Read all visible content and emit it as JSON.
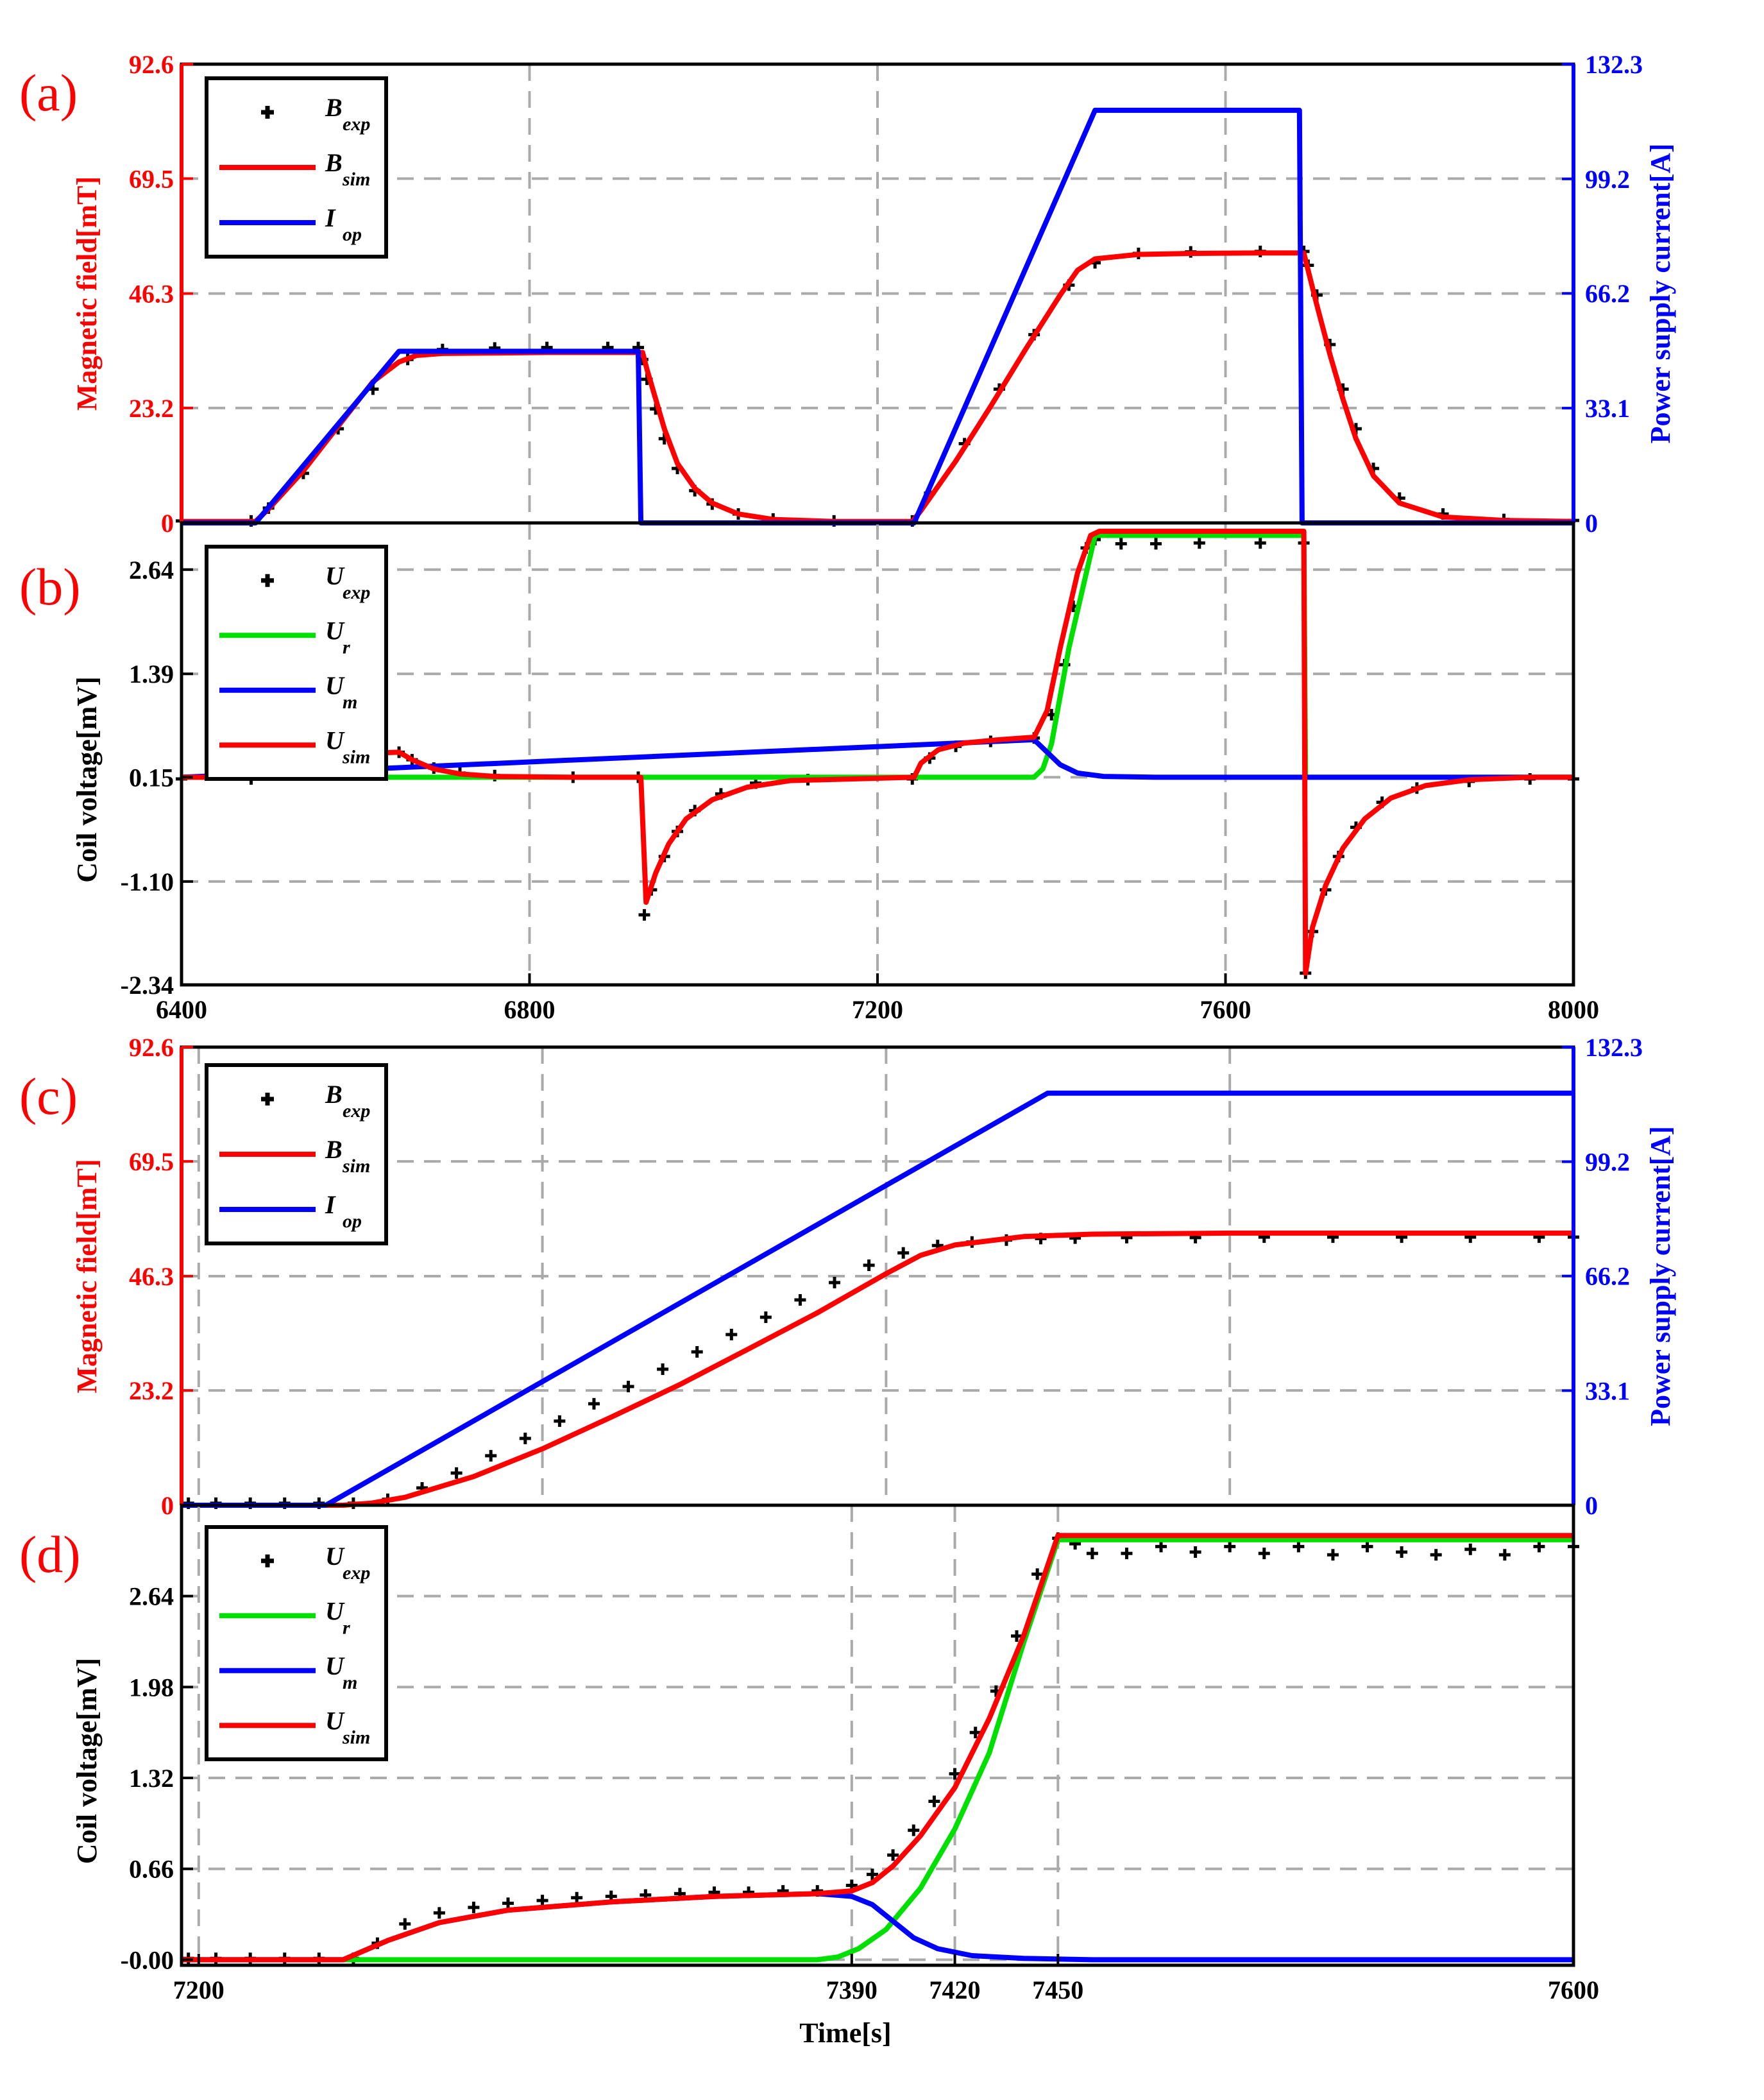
{
  "chart_data": [
    {
      "panel": "(a)",
      "type": "line",
      "xlim": [
        6400,
        8000
      ],
      "xticks": [
        "6400",
        "6800",
        "7200",
        "7600",
        "8000"
      ],
      "ylim_left": [
        0,
        92.6
      ],
      "yticks_left": [
        "0",
        "23.2",
        "46.3",
        "69.5",
        "92.6"
      ],
      "ylabel_left": "Magnetic field[mT]",
      "ylim_right": [
        0,
        132.3
      ],
      "yticks_right": [
        "0",
        "33.1",
        "66.2",
        "99.2",
        "132.3"
      ],
      "ylabel_right": "Power supply current[A]",
      "grid": true,
      "legend_position": "top-left",
      "legend": [
        {
          "label": "B",
          "sub": "exp",
          "color": "#000000",
          "marker": "plus"
        },
        {
          "label": "B",
          "sub": "sim",
          "color": "#ff0000"
        },
        {
          "label": "I",
          "sub": "op",
          "color": "#0000ff"
        }
      ],
      "series": [
        {
          "name": "B_exp",
          "axis": "left",
          "color": "#000000",
          "marker": "plus",
          "x": [
            6400,
            6480,
            6500,
            6540,
            6580,
            6620,
            6660,
            6700,
            6760,
            6820,
            6890,
            6925,
            6930,
            6935,
            6945,
            6955,
            6970,
            6990,
            7010,
            7040,
            7080,
            7150,
            7240,
            7260,
            7300,
            7340,
            7380,
            7420,
            7450,
            7500,
            7560,
            7640,
            7690,
            7695,
            7705,
            7720,
            7735,
            7750,
            7770,
            7800,
            7850,
            7920,
            8000
          ],
          "y": [
            0.4,
            0.4,
            3,
            10,
            19,
            27,
            33,
            35,
            35.3,
            35.4,
            35.4,
            35.4,
            33,
            29,
            23,
            17,
            11,
            6.5,
            3.8,
            1.8,
            0.8,
            0.4,
            0.4,
            6,
            16,
            27,
            38,
            48,
            52.5,
            54.4,
            54.7,
            54.8,
            54.8,
            52,
            46,
            36,
            27,
            19,
            11,
            5,
            1.8,
            0.7,
            0.5
          ]
        },
        {
          "name": "B_sim",
          "axis": "left",
          "color": "#ff0000",
          "x": [
            6400,
            6485,
            6500,
            6540,
            6580,
            6620,
            6650,
            6670,
            6700,
            6760,
            6820,
            6890,
            6930,
            6935,
            6945,
            6955,
            6970,
            6990,
            7010,
            7040,
            7080,
            7150,
            7240,
            7250,
            7290,
            7330,
            7370,
            7410,
            7430,
            7450,
            7500,
            7560,
            7640,
            7690,
            7695,
            7705,
            7720,
            7735,
            7750,
            7770,
            7800,
            7850,
            7920,
            8000
          ],
          "y": [
            0.3,
            0.3,
            2.8,
            10.5,
            19.5,
            28.5,
            32.5,
            33.8,
            34.2,
            34.3,
            34.4,
            34.4,
            34.4,
            31,
            25,
            19,
            12,
            7,
            4,
            1.8,
            0.7,
            0.3,
            0.3,
            2.5,
            12.5,
            23.5,
            35,
            46,
            51,
            53.3,
            54.2,
            54.4,
            54.5,
            54.5,
            51,
            44,
            34,
            25,
            17,
            9.5,
            4,
            1.2,
            0.5,
            0.3
          ]
        },
        {
          "name": "I_op",
          "axis": "right",
          "color": "#0000ff",
          "x": [
            6400,
            6485,
            6650,
            6925,
            6928,
            7242,
            7450,
            7685,
            7688,
            8000
          ],
          "y": [
            0,
            0,
            49.5,
            49.5,
            0,
            0,
            119,
            119,
            0,
            0
          ]
        }
      ]
    },
    {
      "panel": "(b)",
      "type": "line",
      "xlim": [
        6400,
        8000
      ],
      "xticks": [
        "6400",
        "6800",
        "7200",
        "7600",
        "8000"
      ],
      "ylim_left": [
        -2.34,
        3.2
      ],
      "yticks_left": [
        "-2.34",
        "-1.10",
        "0.15",
        "1.39",
        "2.64"
      ],
      "ylabel_left": "Coil voltage[mV]",
      "grid": true,
      "legend_position": "top-left",
      "legend": [
        {
          "label": "U",
          "sub": "exp",
          "color": "#000000",
          "marker": "plus"
        },
        {
          "label": "U",
          "sub": "r",
          "color": "#00e000"
        },
        {
          "label": "U",
          "sub": "m",
          "color": "#0000ff"
        },
        {
          "label": "U",
          "sub": "sim",
          "color": "#ff0000"
        }
      ],
      "series": [
        {
          "name": "U_exp",
          "axis": "left",
          "color": "#000000",
          "marker": "plus",
          "x": [
            6400,
            6480,
            6495,
            6520,
            6560,
            6600,
            6650,
            6665,
            6690,
            6720,
            6760,
            6850,
            6925,
            6932,
            6940,
            6955,
            6970,
            6990,
            7020,
            7060,
            7120,
            7240,
            7260,
            7290,
            7330,
            7380,
            7400,
            7415,
            7425,
            7440,
            7450,
            7480,
            7520,
            7570,
            7640,
            7690,
            7692,
            7700,
            7715,
            7730,
            7750,
            7780,
            7820,
            7880,
            7950,
            8000
          ],
          "y": [
            0.13,
            0.13,
            0.28,
            0.38,
            0.42,
            0.44,
            0.45,
            0.36,
            0.26,
            0.2,
            0.17,
            0.15,
            0.15,
            -1.5,
            -1.2,
            -0.8,
            -0.5,
            -0.25,
            -0.05,
            0.08,
            0.12,
            0.13,
            0.38,
            0.52,
            0.58,
            0.62,
            0.9,
            1.5,
            2.2,
            2.9,
            3.0,
            2.95,
            2.95,
            2.96,
            2.96,
            2.96,
            -2.2,
            -1.7,
            -1.2,
            -0.8,
            -0.45,
            -0.15,
            0.02,
            0.1,
            0.13,
            0.13
          ]
        },
        {
          "name": "U_r",
          "axis": "left",
          "color": "#00e000",
          "x": [
            6400,
            7380,
            7390,
            7400,
            7420,
            7450,
            7690,
            7692,
            8000
          ],
          "y": [
            0.15,
            0.15,
            0.25,
            0.55,
            1.7,
            3.05,
            3.05,
            0.15,
            0.15
          ]
        },
        {
          "name": "U_m",
          "axis": "left",
          "color": "#0000ff",
          "x": [
            6400,
            7380,
            7395,
            7410,
            7430,
            7460,
            7520,
            7600,
            8000
          ],
          "y": [
            0.15,
            0.6,
            0.45,
            0.3,
            0.2,
            0.16,
            0.15,
            0.15,
            0.15
          ]
        },
        {
          "name": "U_sim",
          "axis": "left",
          "color": "#ff0000",
          "x": [
            6400,
            6485,
            6500,
            6530,
            6570,
            6620,
            6650,
            6665,
            6690,
            6720,
            6760,
            6850,
            6928,
            6934,
            6945,
            6960,
            6980,
            7010,
            7050,
            7100,
            7242,
            7250,
            7270,
            7300,
            7340,
            7380,
            7395,
            7410,
            7430,
            7445,
            7455,
            7690,
            7692,
            7700,
            7715,
            7735,
            7760,
            7790,
            7830,
            7880,
            7950,
            8000
          ],
          "y": [
            0.15,
            0.15,
            0.3,
            0.38,
            0.42,
            0.44,
            0.45,
            0.36,
            0.25,
            0.19,
            0.16,
            0.15,
            0.15,
            -1.35,
            -1.0,
            -0.65,
            -0.35,
            -0.12,
            0.03,
            0.11,
            0.15,
            0.32,
            0.48,
            0.56,
            0.6,
            0.63,
            0.95,
            1.7,
            2.6,
            3.05,
            3.1,
            3.1,
            -2.2,
            -1.65,
            -1.15,
            -0.7,
            -0.35,
            -0.1,
            0.05,
            0.12,
            0.15,
            0.15
          ]
        }
      ]
    },
    {
      "panel": "(c)",
      "type": "line",
      "xlim": [
        7195,
        7600
      ],
      "xgrid": [
        7200,
        7300,
        7400,
        7500
      ],
      "ylim_left": [
        0,
        92.6
      ],
      "yticks_left": [
        "0",
        "23.2",
        "46.3",
        "69.5",
        "92.6"
      ],
      "ylabel_left": "Magnetic field[mT]",
      "ylim_right": [
        0,
        132.3
      ],
      "yticks_right": [
        "0",
        "33.1",
        "66.2",
        "99.2",
        "132.3"
      ],
      "ylabel_right": "Power supply current[A]",
      "grid": true,
      "legend_position": "top-left",
      "legend": [
        {
          "label": "B",
          "sub": "exp",
          "color": "#000000",
          "marker": "plus"
        },
        {
          "label": "B",
          "sub": "sim",
          "color": "#ff0000"
        },
        {
          "label": "I",
          "sub": "op",
          "color": "#0000ff"
        }
      ],
      "series": [
        {
          "name": "B_exp",
          "axis": "left",
          "color": "#000000",
          "marker": "plus",
          "x": [
            7197,
            7205,
            7215,
            7225,
            7235,
            7245,
            7255,
            7265,
            7275,
            7285,
            7295,
            7305,
            7315,
            7325,
            7335,
            7345,
            7355,
            7365,
            7375,
            7385,
            7395,
            7405,
            7415,
            7425,
            7435,
            7445,
            7455,
            7470,
            7490,
            7510,
            7530,
            7550,
            7570,
            7590,
            7600
          ],
          "y": [
            0.4,
            0.4,
            0.4,
            0.4,
            0.4,
            0.4,
            1.2,
            3.5,
            6.5,
            10,
            13.5,
            17,
            20.5,
            24,
            27.5,
            31,
            34.5,
            38,
            41.5,
            45,
            48.5,
            51,
            52.5,
            53.2,
            53.6,
            53.9,
            54,
            54.1,
            54.1,
            54.2,
            54.2,
            54.2,
            54.2,
            54.2,
            54.2
          ]
        },
        {
          "name": "B_sim",
          "axis": "left",
          "color": "#ff0000",
          "x": [
            7195,
            7242,
            7250,
            7260,
            7280,
            7300,
            7320,
            7340,
            7360,
            7380,
            7400,
            7410,
            7420,
            7440,
            7460,
            7500,
            7550,
            7600
          ],
          "y": [
            0,
            0,
            0.4,
            1.6,
            5.8,
            11.4,
            17.8,
            24.4,
            31.6,
            38.9,
            46.8,
            50.5,
            52.6,
            54.3,
            54.8,
            55.0,
            55.0,
            55.0
          ]
        },
        {
          "name": "I_op",
          "axis": "right",
          "color": "#0000ff",
          "x": [
            7195,
            7237,
            7447,
            7600
          ],
          "y": [
            0,
            0,
            119,
            119
          ]
        }
      ]
    },
    {
      "panel": "(d)",
      "type": "line",
      "xlim": [
        7195,
        7600
      ],
      "xticks": [
        "7200",
        "7390",
        "7420",
        "7450",
        "7600"
      ],
      "xtick_values": [
        7200,
        7390,
        7420,
        7450,
        7600
      ],
      "xlabel": "Time[s]",
      "ylim_left": [
        -0.04,
        3.3
      ],
      "yticks_left": [
        "-0.00",
        "0.66",
        "1.32",
        "1.98",
        "2.64"
      ],
      "ylabel_left": "Coil voltage[mV]",
      "grid": true,
      "legend_position": "top-left",
      "legend": [
        {
          "label": "U",
          "sub": "exp",
          "color": "#000000",
          "marker": "plus"
        },
        {
          "label": "U",
          "sub": "r",
          "color": "#00e000"
        },
        {
          "label": "U",
          "sub": "m",
          "color": "#0000ff"
        },
        {
          "label": "U",
          "sub": "sim",
          "color": "#ff0000"
        }
      ],
      "series": [
        {
          "name": "U_exp",
          "axis": "left",
          "color": "#000000",
          "marker": "plus",
          "x": [
            7197,
            7205,
            7215,
            7225,
            7235,
            7245,
            7252,
            7260,
            7270,
            7280,
            7290,
            7300,
            7310,
            7320,
            7330,
            7340,
            7350,
            7360,
            7370,
            7380,
            7390,
            7396,
            7402,
            7408,
            7414,
            7420,
            7426,
            7432,
            7438,
            7444,
            7450,
            7455,
            7460,
            7470,
            7480,
            7490,
            7500,
            7510,
            7520,
            7530,
            7540,
            7550,
            7560,
            7570,
            7580,
            7590,
            7600
          ],
          "y": [
            0.01,
            0.01,
            0.01,
            0.01,
            0.01,
            0.01,
            0.12,
            0.26,
            0.34,
            0.38,
            0.41,
            0.43,
            0.45,
            0.46,
            0.47,
            0.48,
            0.49,
            0.49,
            0.5,
            0.5,
            0.54,
            0.62,
            0.76,
            0.94,
            1.15,
            1.35,
            1.65,
            1.95,
            2.35,
            2.8,
            3.06,
            3.02,
            2.95,
            2.95,
            3.0,
            2.96,
            3.0,
            2.95,
            3.0,
            2.94,
            3.0,
            2.96,
            2.94,
            2.98,
            2.94,
            3.0,
            3.0
          ]
        },
        {
          "name": "U_r",
          "axis": "left",
          "color": "#00e000",
          "x": [
            7195,
            7380,
            7386,
            7392,
            7400,
            7410,
            7420,
            7430,
            7440,
            7450,
            7600
          ],
          "y": [
            0,
            0,
            0.02,
            0.08,
            0.22,
            0.52,
            0.95,
            1.5,
            2.3,
            3.05,
            3.05
          ]
        },
        {
          "name": "U_m",
          "axis": "left",
          "color": "#0000ff",
          "x": [
            7195,
            7242,
            7255,
            7270,
            7290,
            7320,
            7350,
            7380,
            7390,
            7396,
            7402,
            7408,
            7415,
            7425,
            7440,
            7460,
            7500,
            7600
          ],
          "y": [
            0,
            0,
            0.14,
            0.27,
            0.36,
            0.42,
            0.46,
            0.48,
            0.46,
            0.4,
            0.28,
            0.16,
            0.08,
            0.03,
            0.01,
            0,
            0,
            0
          ]
        },
        {
          "name": "U_sim",
          "axis": "left",
          "color": "#ff0000",
          "x": [
            7195,
            7242,
            7255,
            7270,
            7290,
            7320,
            7350,
            7380,
            7390,
            7396,
            7402,
            7410,
            7420,
            7430,
            7440,
            7450,
            7600
          ],
          "y": [
            0,
            0,
            0.14,
            0.27,
            0.36,
            0.42,
            0.46,
            0.48,
            0.5,
            0.56,
            0.68,
            0.9,
            1.25,
            1.75,
            2.35,
            3.08,
            3.08
          ]
        }
      ]
    }
  ],
  "panel_labels": [
    "(a)",
    "(b)",
    "(c)",
    "(d)"
  ],
  "xlabel": "Time[s]"
}
